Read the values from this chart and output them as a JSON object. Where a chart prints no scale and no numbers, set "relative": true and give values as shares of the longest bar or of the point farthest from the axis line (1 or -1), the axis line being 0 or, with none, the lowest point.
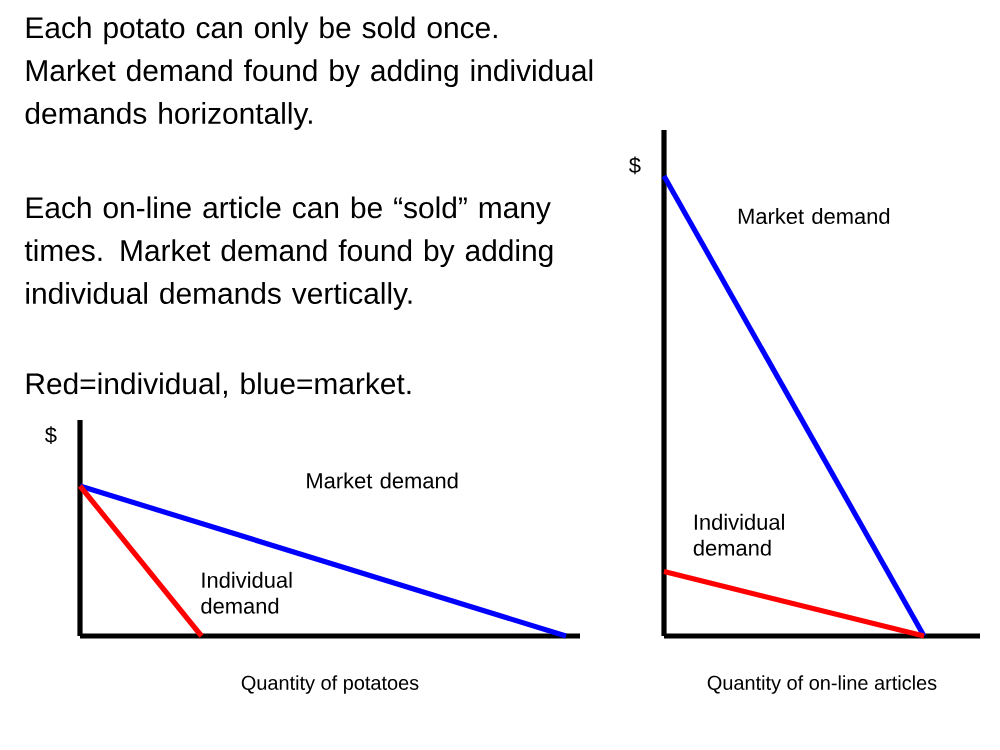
{
  "chart_data": [
    {
      "type": "other",
      "annotations": [
        "Each potato can only be sold once. Market demand found by adding individual demands horizontally.",
        "Each on-line article can be “sold” many times. Market demand found by adding individual demands vertically.",
        "Red=individual, blue=market."
      ]
    },
    {
      "type": "line",
      "relative": true,
      "ylabel": "$",
      "xlabel": "Quantity of potatoes",
      "categories": [
        null,
        null,
        null,
        null,
        null
      ],
      "series": [
        {
          "name": "Market demand",
          "color": "#0000ff",
          "values": [
            1,
            0.75,
            0.5,
            0.25,
            0
          ]
        },
        {
          "name": "Individual demand",
          "color": "#ff0000",
          "values": [
            1,
            0,
            null,
            null,
            null
          ]
        }
      ]
    },
    {
      "type": "line",
      "relative": true,
      "ylabel": "$",
      "xlabel": "Quantity of on-line articles",
      "categories": [
        null,
        null
      ],
      "series": [
        {
          "name": "Market demand",
          "color": "#0000ff",
          "values": [
            1,
            0
          ]
        },
        {
          "name": "Individual demand",
          "color": "#ff0000",
          "values": [
            0.14,
            0
          ]
        }
      ]
    }
  ]
}
